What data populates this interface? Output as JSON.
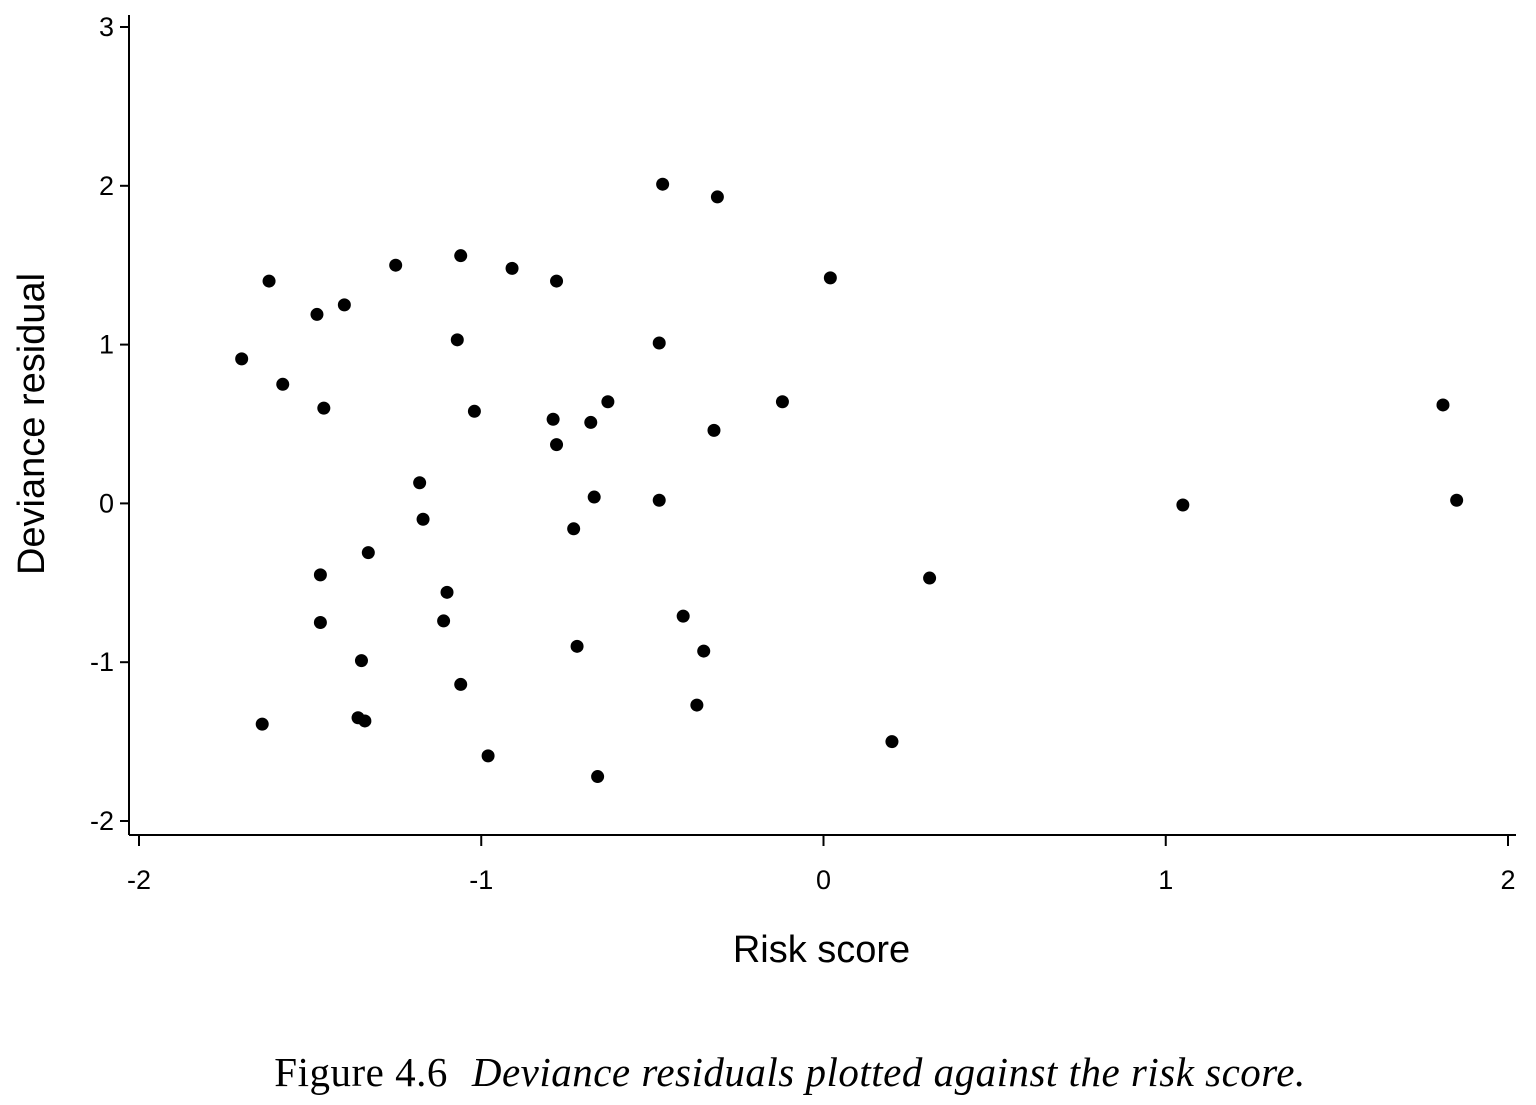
{
  "caption": {
    "lead": "Figure 4.6",
    "text": "Deviance residuals plotted against the risk score."
  },
  "chart_data": {
    "type": "scatter",
    "title": "",
    "xlabel": "Risk score",
    "ylabel": "Deviance residual",
    "xlim": [
      -2,
      2
    ],
    "ylim": [
      -2,
      3
    ],
    "xticks": [
      -2,
      -1,
      0,
      1,
      2
    ],
    "yticks": [
      -2,
      -1,
      0,
      1,
      2,
      3
    ],
    "xtick_labels": [
      "-2",
      "-1",
      "0",
      "1",
      "2"
    ],
    "ytick_labels": [
      "-2",
      "-1",
      "0",
      "1",
      "2",
      "3"
    ],
    "grid": false,
    "legend": "none",
    "marker_color": "#000000",
    "points": [
      {
        "x": -1.7,
        "y": 0.91
      },
      {
        "x": -1.64,
        "y": -1.39
      },
      {
        "x": -1.62,
        "y": 1.4
      },
      {
        "x": -1.58,
        "y": 0.75
      },
      {
        "x": -1.48,
        "y": 1.19
      },
      {
        "x": -1.47,
        "y": -0.45
      },
      {
        "x": -1.47,
        "y": -0.75
      },
      {
        "x": -1.46,
        "y": 0.6
      },
      {
        "x": -1.4,
        "y": 1.25
      },
      {
        "x": -1.36,
        "y": -1.35
      },
      {
        "x": -1.35,
        "y": -0.99
      },
      {
        "x": -1.34,
        "y": -1.37
      },
      {
        "x": -1.33,
        "y": -0.31
      },
      {
        "x": -1.25,
        "y": 1.5
      },
      {
        "x": -1.18,
        "y": 0.13
      },
      {
        "x": -1.17,
        "y": -0.1
      },
      {
        "x": -1.11,
        "y": -0.74
      },
      {
        "x": -1.1,
        "y": -0.56
      },
      {
        "x": -1.07,
        "y": 1.03
      },
      {
        "x": -1.06,
        "y": 1.56
      },
      {
        "x": -1.06,
        "y": -1.14
      },
      {
        "x": -1.02,
        "y": 0.58
      },
      {
        "x": -0.98,
        "y": -1.59
      },
      {
        "x": -0.91,
        "y": 1.48
      },
      {
        "x": -0.79,
        "y": 0.53
      },
      {
        "x": -0.78,
        "y": 1.4
      },
      {
        "x": -0.78,
        "y": 0.37
      },
      {
        "x": -0.73,
        "y": -0.16
      },
      {
        "x": -0.72,
        "y": -0.9
      },
      {
        "x": -0.68,
        "y": 0.51
      },
      {
        "x": -0.67,
        "y": 0.04
      },
      {
        "x": -0.66,
        "y": -1.72
      },
      {
        "x": -0.63,
        "y": 0.64
      },
      {
        "x": -0.48,
        "y": 0.02
      },
      {
        "x": -0.48,
        "y": 1.01
      },
      {
        "x": -0.47,
        "y": 2.01
      },
      {
        "x": -0.41,
        "y": -0.71
      },
      {
        "x": -0.37,
        "y": -1.27
      },
      {
        "x": -0.35,
        "y": -0.93
      },
      {
        "x": -0.32,
        "y": 0.46
      },
      {
        "x": -0.31,
        "y": 1.93
      },
      {
        "x": -0.12,
        "y": 0.64
      },
      {
        "x": 0.02,
        "y": 1.42
      },
      {
        "x": 0.2,
        "y": -1.5
      },
      {
        "x": 0.31,
        "y": -0.47
      },
      {
        "x": 1.05,
        "y": -0.01
      },
      {
        "x": 1.81,
        "y": 0.62
      },
      {
        "x": 1.85,
        "y": 0.02
      }
    ]
  }
}
